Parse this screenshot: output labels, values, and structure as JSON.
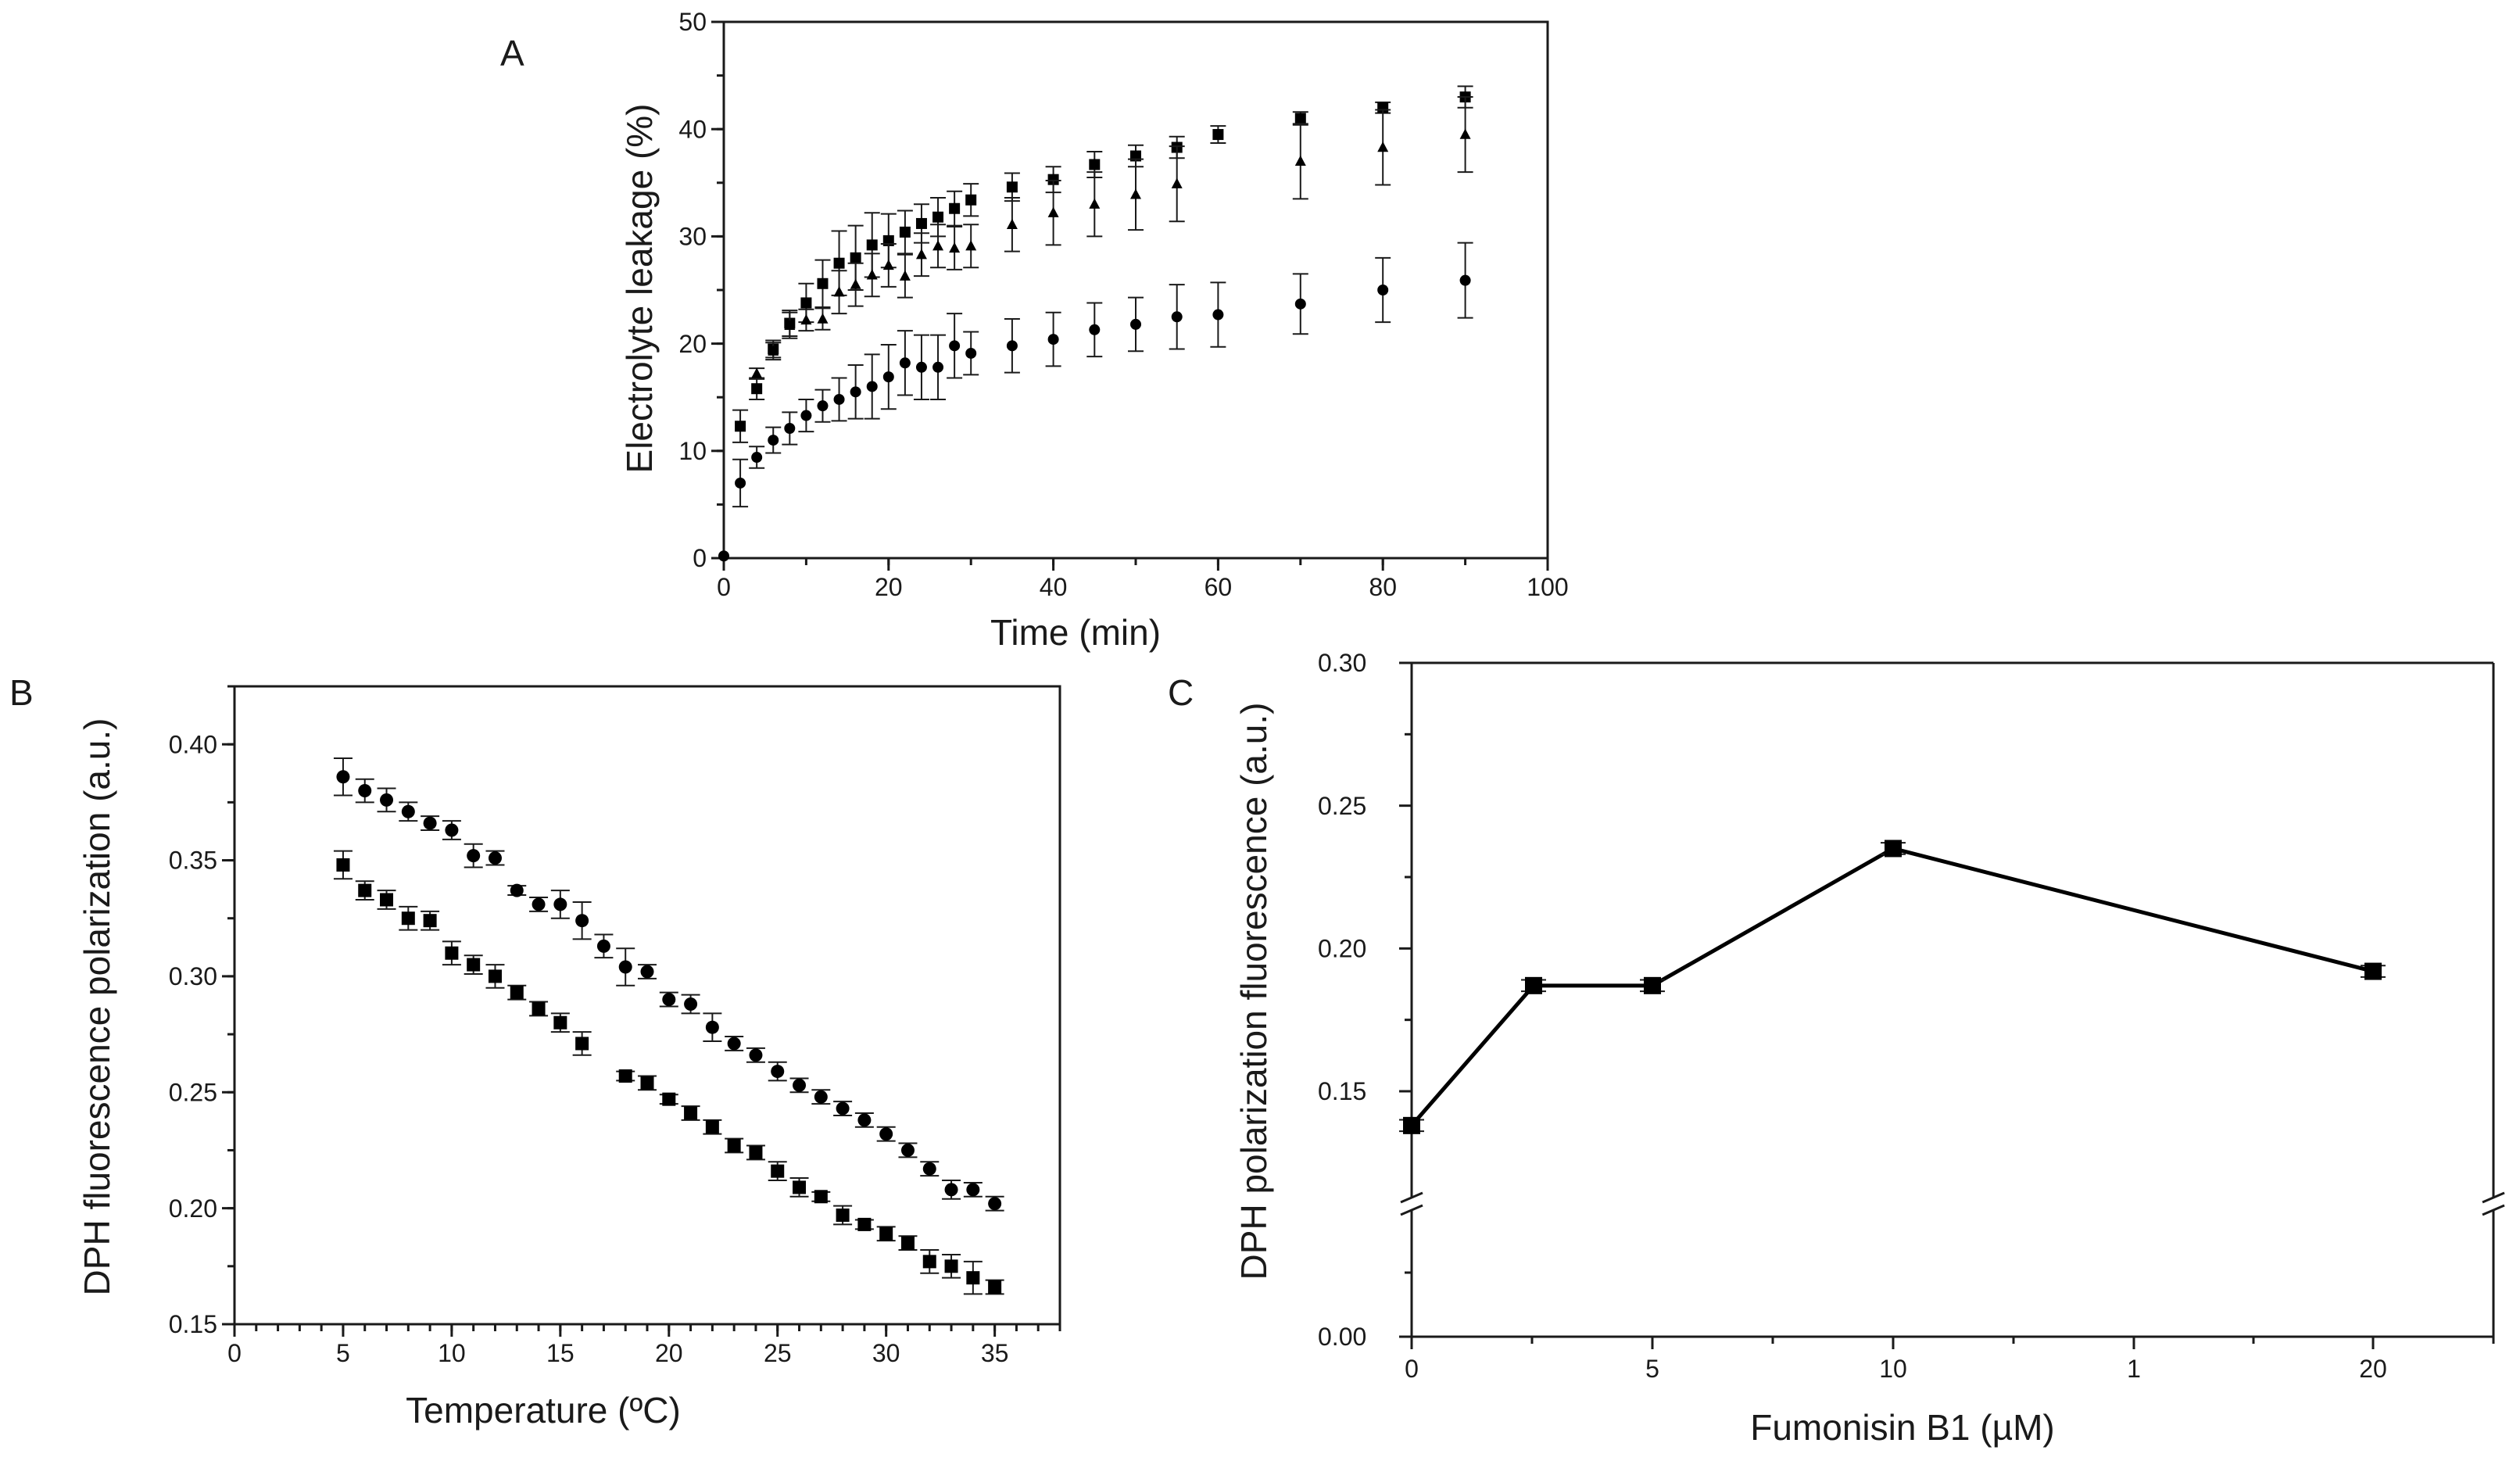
{
  "chart_data": [
    {
      "panel_label": "A",
      "type": "scatter",
      "xlabel": "Time (min)",
      "ylabel": "Electrolyte leakage (%)",
      "xlim": [
        0,
        100
      ],
      "ylim": [
        0,
        50
      ],
      "xticks": [
        "0",
        "20",
        "40",
        "60",
        "80",
        "100"
      ],
      "yticks": [
        "0",
        "10",
        "20",
        "30",
        "40",
        "50"
      ],
      "xtick_values": [
        0,
        20,
        40,
        60,
        80,
        100
      ],
      "ytick_values": [
        0,
        10,
        20,
        30,
        40,
        50
      ],
      "minor_x_step": 10,
      "minor_y_step": 5,
      "box": "closed",
      "series": [
        {
          "marker": "square",
          "x": [
            2,
            4,
            6,
            8,
            10,
            12,
            14,
            16,
            18,
            20,
            22,
            24,
            26,
            28,
            30,
            35,
            40,
            45,
            50,
            55,
            60,
            70,
            80,
            90
          ],
          "y": [
            12.3,
            15.8,
            19.5,
            21.9,
            23.8,
            25.6,
            27.5,
            28.0,
            29.2,
            29.6,
            30.4,
            31.2,
            31.8,
            32.6,
            33.4,
            34.6,
            35.3,
            36.7,
            37.5,
            38.3,
            39.5,
            41.0,
            42.0,
            43.0
          ],
          "err": [
            1.5,
            1.0,
            0.8,
            1.2,
            1.8,
            2.2,
            3.0,
            3.0,
            3.0,
            2.5,
            2.0,
            1.8,
            1.8,
            1.6,
            1.5,
            1.3,
            1.2,
            1.2,
            1.0,
            1.0,
            0.8,
            0.6,
            0.5,
            1.0
          ]
        },
        {
          "marker": "triangle",
          "x": [
            4,
            6,
            8,
            10,
            12,
            14,
            16,
            18,
            20,
            22,
            24,
            26,
            28,
            30,
            35,
            40,
            45,
            50,
            55,
            70,
            80,
            90
          ],
          "y": [
            17.2,
            19.3,
            21.7,
            22.2,
            22.3,
            24.8,
            25.5,
            26.4,
            27.3,
            26.3,
            28.3,
            29.1,
            28.9,
            29.1,
            31.1,
            32.2,
            33.0,
            33.9,
            34.9,
            37.0,
            38.3,
            39.5
          ],
          "err": [
            0.5,
            0.8,
            1.2,
            1.0,
            1.0,
            2.0,
            2.0,
            2.0,
            2.0,
            2.0,
            2.0,
            2.0,
            2.0,
            2.0,
            2.5,
            3.0,
            3.0,
            3.3,
            3.5,
            3.5,
            3.5,
            3.5
          ]
        },
        {
          "marker": "circle",
          "x": [
            0,
            2,
            4,
            6,
            8,
            10,
            12,
            14,
            16,
            18,
            20,
            22,
            24,
            26,
            28,
            30,
            35,
            40,
            45,
            50,
            55,
            60,
            70,
            80,
            90
          ],
          "y": [
            0.2,
            7.0,
            9.4,
            11.0,
            12.1,
            13.3,
            14.2,
            14.8,
            15.5,
            16.0,
            16.9,
            18.2,
            17.8,
            17.8,
            19.8,
            19.1,
            19.8,
            20.4,
            21.3,
            21.8,
            22.5,
            22.7,
            23.7,
            25.0,
            25.9
          ],
          "err": [
            0.0,
            2.2,
            1.0,
            1.2,
            1.5,
            1.5,
            1.5,
            2.0,
            2.5,
            3.0,
            3.0,
            3.0,
            3.0,
            3.0,
            3.0,
            2.0,
            2.5,
            2.5,
            2.5,
            2.5,
            3.0,
            3.0,
            2.8,
            3.0,
            3.5
          ]
        }
      ]
    },
    {
      "panel_label": "B",
      "type": "scatter",
      "xlabel": "Temperature (ºC)",
      "ylabel": "DPH fluorescence polarization (a.u.)",
      "xlim": [
        0,
        38
      ],
      "ylim": [
        0.15,
        0.425
      ],
      "xticks": [
        "0",
        "5",
        "10",
        "15",
        "20",
        "25",
        "30",
        "35"
      ],
      "yticks": [
        "0.15",
        "0.20",
        "0.25",
        "0.30",
        "0.35",
        "0.40"
      ],
      "xtick_values": [
        0,
        5,
        10,
        15,
        20,
        25,
        30,
        35
      ],
      "ytick_values": [
        0.15,
        0.2,
        0.25,
        0.3,
        0.35,
        0.4
      ],
      "minor_x_step": 1,
      "minor_y_step": 0.025,
      "box": "closed",
      "series": [
        {
          "marker": "circle",
          "x": [
            5,
            6,
            7,
            8,
            9,
            10,
            11,
            12,
            13,
            14,
            15,
            16,
            17,
            18,
            19,
            20,
            21,
            22,
            23,
            24,
            25,
            26,
            27,
            28,
            29,
            30,
            31,
            32,
            33,
            34,
            35
          ],
          "y": [
            0.386,
            0.38,
            0.376,
            0.371,
            0.366,
            0.363,
            0.352,
            0.351,
            0.337,
            0.331,
            0.331,
            0.324,
            0.313,
            0.304,
            0.302,
            0.29,
            0.288,
            0.278,
            0.271,
            0.266,
            0.259,
            0.253,
            0.248,
            0.243,
            0.238,
            0.232,
            0.225,
            0.217,
            0.208,
            0.208,
            0.202
          ],
          "err": [
            0.008,
            0.005,
            0.005,
            0.004,
            0.003,
            0.004,
            0.005,
            0.003,
            0.002,
            0.003,
            0.006,
            0.008,
            0.005,
            0.008,
            0.003,
            0.003,
            0.004,
            0.006,
            0.003,
            0.003,
            0.004,
            0.003,
            0.003,
            0.003,
            0.003,
            0.003,
            0.003,
            0.003,
            0.004,
            0.003,
            0.003
          ]
        },
        {
          "marker": "square",
          "x": [
            5,
            6,
            7,
            8,
            9,
            10,
            11,
            12,
            13,
            14,
            15,
            16,
            18,
            19,
            20,
            21,
            22,
            23,
            24,
            25,
            26,
            27,
            28,
            29,
            30,
            31,
            32,
            33,
            34,
            35
          ],
          "y": [
            0.348,
            0.337,
            0.333,
            0.325,
            0.324,
            0.31,
            0.305,
            0.3,
            0.293,
            0.286,
            0.28,
            0.271,
            0.257,
            0.254,
            0.247,
            0.241,
            0.235,
            0.227,
            0.224,
            0.216,
            0.209,
            0.205,
            0.197,
            0.193,
            0.189,
            0.185,
            0.177,
            0.175,
            0.17,
            0.166
          ],
          "err": [
            0.006,
            0.004,
            0.004,
            0.005,
            0.004,
            0.005,
            0.004,
            0.005,
            0.003,
            0.003,
            0.004,
            0.005,
            0.002,
            0.003,
            0.002,
            0.003,
            0.003,
            0.003,
            0.003,
            0.004,
            0.004,
            0.002,
            0.004,
            0.002,
            0.003,
            0.003,
            0.005,
            0.005,
            0.007,
            0.003
          ]
        }
      ]
    },
    {
      "panel_label": "C",
      "type": "line",
      "xlabel": "Fumonisin B1  (µM)",
      "ylabel": "DPH polarization  fluorescence  (a.u.)",
      "categories": [
        "0",
        "2.5",
        "5",
        "10",
        "20"
      ],
      "values": [
        0.138,
        0.187,
        0.187,
        0.235,
        0.192
      ],
      "err": [
        0.002,
        0.002,
        0.002,
        0.002,
        0.002
      ],
      "xticks": [
        "0",
        "5",
        "10",
        "1",
        "20"
      ],
      "yticks": [
        "0.00",
        "0.15",
        "0.20",
        "0.25",
        "0.30"
      ],
      "y_axis_break": true,
      "box": "closed"
    }
  ]
}
